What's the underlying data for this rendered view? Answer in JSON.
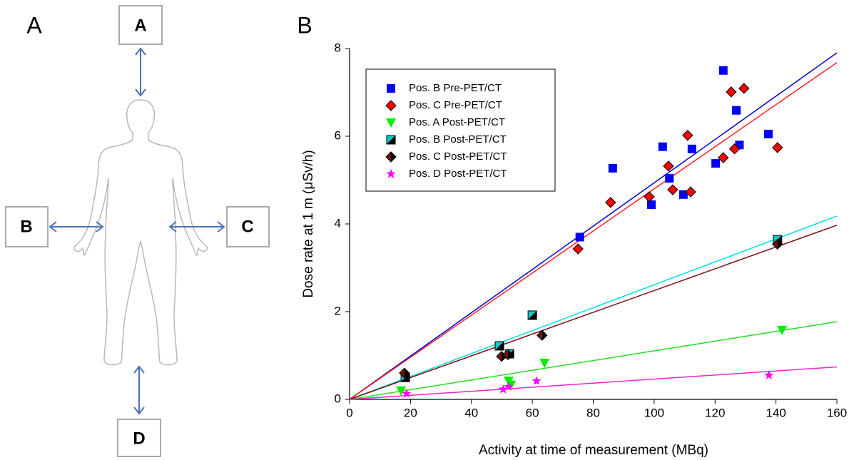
{
  "panel_labels": [
    "A",
    "B"
  ],
  "diagram": {
    "positions": [
      "A",
      "B",
      "C",
      "D"
    ]
  },
  "chart_data": {
    "type": "scatter",
    "xlabel": "Activity at time of measurement (MBq)",
    "ylabel": "Dose rate at 1 m (μSv/h)",
    "xlim": [
      0,
      160
    ],
    "ylim": [
      0,
      8
    ],
    "xticks": [
      0,
      20,
      40,
      60,
      80,
      100,
      120,
      140,
      160
    ],
    "yticks": [
      0,
      2,
      4,
      6,
      8
    ],
    "legend": "upper-left",
    "series": [
      {
        "name": "Pos. B Pre-PET/CT",
        "color": "#0000ff",
        "marker": "square",
        "x": [
          75.6,
          86.4,
          99.1,
          102.8,
          105,
          109.6,
          112.4,
          120.2,
          122.7,
          127,
          128,
          137.5
        ],
        "values": [
          3.7,
          5.27,
          4.44,
          5.76,
          5.04,
          4.67,
          5.71,
          5.38,
          7.5,
          6.59,
          5.8,
          6.05
        ],
        "fit": {
          "color": "#0000cc",
          "x": [
            0,
            160
          ],
          "values": [
            0,
            7.9
          ]
        }
      },
      {
        "name": "Pos. C Pre-PET/CT",
        "color": "#ff0000",
        "marker": "diamond",
        "x": [
          75,
          85.7,
          98.4,
          104.7,
          106.1,
          111,
          112,
          122.7,
          125.3,
          126.4,
          129.5,
          140.5
        ],
        "values": [
          3.43,
          4.49,
          4.62,
          5.32,
          4.78,
          6.02,
          4.73,
          5.51,
          7.01,
          5.71,
          7.09,
          5.74
        ],
        "fit": {
          "color": "#ff2020",
          "x": [
            0,
            160
          ],
          "values": [
            0,
            7.68
          ]
        }
      },
      {
        "name": "Pos. A Post-PET/CT",
        "color": "#00ee00",
        "marker": "triangle-down",
        "x": [
          16.9,
          52.2,
          53,
          64,
          142
        ],
        "values": [
          0.2,
          0.42,
          0.33,
          0.83,
          1.58
        ],
        "fit": {
          "color": "#22dd22",
          "x": [
            0,
            160
          ],
          "values": [
            0,
            1.77
          ]
        }
      },
      {
        "name": "Pos. B Post-PET/CT",
        "color": "#00cccc",
        "marker": "half-square",
        "x": [
          18.3,
          49.2,
          52.5,
          60,
          140.5
        ],
        "values": [
          0.5,
          1.22,
          1.04,
          1.92,
          3.64
        ],
        "fit": {
          "color": "#00e0e0",
          "x": [
            0,
            160
          ],
          "values": [
            0,
            4.18
          ]
        }
      },
      {
        "name": "Pos. C Post-PET/CT",
        "color": "#000000",
        "marker": "half-diamond",
        "x": [
          18,
          49.9,
          52,
          63.2,
          140.5
        ],
        "values": [
          0.6,
          0.98,
          1.02,
          1.46,
          3.54
        ],
        "fit": {
          "color": "#7a1010",
          "x": [
            0,
            160
          ],
          "values": [
            0,
            3.97
          ]
        }
      },
      {
        "name": "Pos. D Post-PET/CT",
        "color": "#ff00ff",
        "marker": "star",
        "x": [
          18.7,
          50.4,
          52.2,
          61.4,
          137.7
        ],
        "values": [
          0.13,
          0.23,
          0.29,
          0.42,
          0.55
        ],
        "fit": {
          "color": "#ee22cc",
          "x": [
            0,
            160
          ],
          "values": [
            0,
            0.74
          ]
        }
      }
    ]
  }
}
